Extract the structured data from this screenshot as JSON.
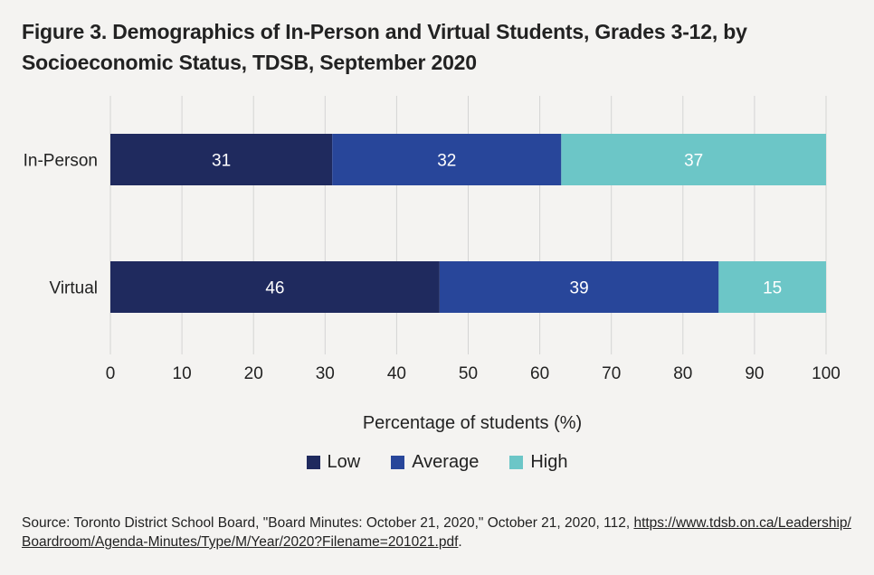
{
  "figure": {
    "title_line1": "Figure 3. Demographics of In-Person and Virtual Students, Grades 3-12, by",
    "title_line2": "Socioeconomic Status, TDSB, September 2020"
  },
  "chart_data": {
    "type": "bar",
    "orientation": "horizontal",
    "stacked": true,
    "categories": [
      "In-Person",
      "Virtual"
    ],
    "series": [
      {
        "name": "Low",
        "color": "#1f2a5e",
        "values": [
          31,
          46
        ]
      },
      {
        "name": "Average",
        "color": "#28469a",
        "values": [
          32,
          39
        ]
      },
      {
        "name": "High",
        "color": "#6cc6c7",
        "values": [
          37,
          15
        ]
      }
    ],
    "xlabel": "Percentage of students (%)",
    "xlim": [
      0,
      100
    ],
    "xticks": [
      0,
      10,
      20,
      30,
      40,
      50,
      60,
      70,
      80,
      90,
      100
    ],
    "grid": true,
    "legend_position": "bottom"
  },
  "source": {
    "prefix": "Source: Toronto District School Board, \"Board Minutes: October 21, 2020,\" October 21, 2020, 112, ",
    "link_line1": "https://www.tdsb.on.ca/Leadership/",
    "link_line2": "Boardroom/Agenda-Minutes/Type/M/Year/2020?Filename=201021.pdf",
    "suffix": "."
  }
}
